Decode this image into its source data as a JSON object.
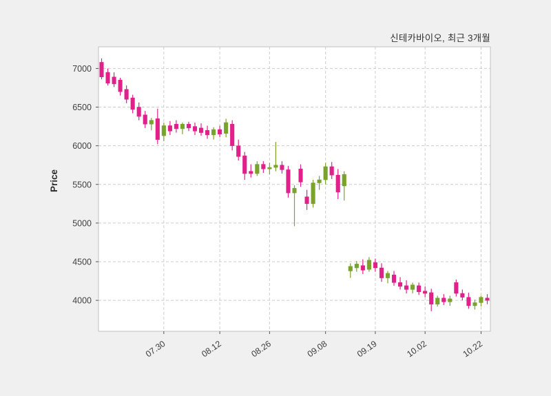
{
  "chart_data": {
    "type": "candlestick",
    "title": "신테카바이오, 최근 3개월",
    "ylabel": "Price",
    "xlabel": "",
    "ylim": [
      3600,
      7280
    ],
    "yticks": [
      4000,
      4500,
      5000,
      5500,
      6000,
      6500,
      7000
    ],
    "xticks": [
      {
        "label": "07.30",
        "index": 10
      },
      {
        "label": "08.12",
        "index": 19
      },
      {
        "label": "08.26",
        "index": 27
      },
      {
        "label": "09.08",
        "index": 36
      },
      {
        "label": "09.19",
        "index": 44
      },
      {
        "label": "10.02",
        "index": 52
      },
      {
        "label": "10.22",
        "index": 61
      }
    ],
    "grid": "dashed-both-axes",
    "legend": "none",
    "colors": {
      "up": "#79a32b",
      "down": "#e0218a",
      "grid": "#cccccc",
      "spine": "#c0c0c0",
      "tick_text": "#3f3f3f",
      "plot_bg": "#ffffff"
    },
    "candles": [
      [
        7080,
        7130,
        6860,
        6890
      ],
      [
        6950,
        7000,
        6780,
        6810
      ],
      [
        6890,
        6950,
        6760,
        6800
      ],
      [
        6850,
        6880,
        6650,
        6700
      ],
      [
        6730,
        6780,
        6550,
        6600
      ],
      [
        6620,
        6660,
        6420,
        6470
      ],
      [
        6500,
        6560,
        6330,
        6380
      ],
      [
        6400,
        6450,
        6230,
        6280
      ],
      [
        6280,
        6360,
        6200,
        6330
      ],
      [
        6350,
        6480,
        6020,
        6080
      ],
      [
        6130,
        6300,
        6060,
        6260
      ],
      [
        6260,
        6320,
        6140,
        6190
      ],
      [
        6280,
        6330,
        6170,
        6220
      ],
      [
        6220,
        6300,
        6150,
        6280
      ],
      [
        6280,
        6310,
        6190,
        6230
      ],
      [
        6250,
        6300,
        6140,
        6190
      ],
      [
        6230,
        6290,
        6130,
        6170
      ],
      [
        6200,
        6260,
        6090,
        6140
      ],
      [
        6140,
        6240,
        6080,
        6210
      ],
      [
        6210,
        6260,
        6110,
        6150
      ],
      [
        6160,
        6350,
        6110,
        6300
      ],
      [
        6280,
        6330,
        5940,
        6000
      ],
      [
        6000,
        6080,
        5810,
        5860
      ],
      [
        5870,
        5920,
        5560,
        5640
      ],
      [
        5670,
        5760,
        5590,
        5640
      ],
      [
        5640,
        5800,
        5610,
        5760
      ],
      [
        5760,
        5800,
        5650,
        5700
      ],
      [
        5700,
        5780,
        5630,
        5720
      ],
      [
        5720,
        6050,
        5670,
        5750
      ],
      [
        5750,
        5800,
        5640,
        5690
      ],
      [
        5690,
        5740,
        5330,
        5390
      ],
      [
        5390,
        5490,
        4960,
        5450
      ],
      [
        5700,
        5760,
        5470,
        5530
      ],
      [
        5340,
        5430,
        5170,
        5250
      ],
      [
        5250,
        5560,
        5200,
        5520
      ],
      [
        5520,
        5610,
        5430,
        5560
      ],
      [
        5560,
        5780,
        5500,
        5730
      ],
      [
        5730,
        5790,
        5570,
        5620
      ],
      [
        5620,
        5700,
        5310,
        5400
      ],
      [
        5480,
        5670,
        5290,
        5630
      ],
      [
        4380,
        4480,
        4290,
        4440
      ],
      [
        4420,
        4510,
        4370,
        4470
      ],
      [
        4450,
        4530,
        4340,
        4390
      ],
      [
        4400,
        4560,
        4370,
        4520
      ],
      [
        4490,
        4540,
        4370,
        4420
      ],
      [
        4420,
        4480,
        4240,
        4290
      ],
      [
        4290,
        4380,
        4220,
        4350
      ],
      [
        4330,
        4380,
        4190,
        4230
      ],
      [
        4230,
        4300,
        4140,
        4180
      ],
      [
        4190,
        4260,
        4090,
        4140
      ],
      [
        4140,
        4230,
        4090,
        4200
      ],
      [
        4190,
        4230,
        4070,
        4110
      ],
      [
        4120,
        4180,
        4040,
        4090
      ],
      [
        4100,
        4150,
        3860,
        3950
      ],
      [
        3950,
        4060,
        3920,
        4030
      ],
      [
        4030,
        4080,
        3940,
        3980
      ],
      [
        3980,
        4060,
        3930,
        4020
      ],
      [
        4230,
        4270,
        4050,
        4090
      ],
      [
        4090,
        4140,
        4000,
        4040
      ],
      [
        4040,
        4100,
        3890,
        3930
      ],
      [
        3930,
        4010,
        3880,
        3970
      ],
      [
        3970,
        4060,
        3920,
        4040
      ],
      [
        4030,
        4080,
        3950,
        4000
      ]
    ]
  }
}
